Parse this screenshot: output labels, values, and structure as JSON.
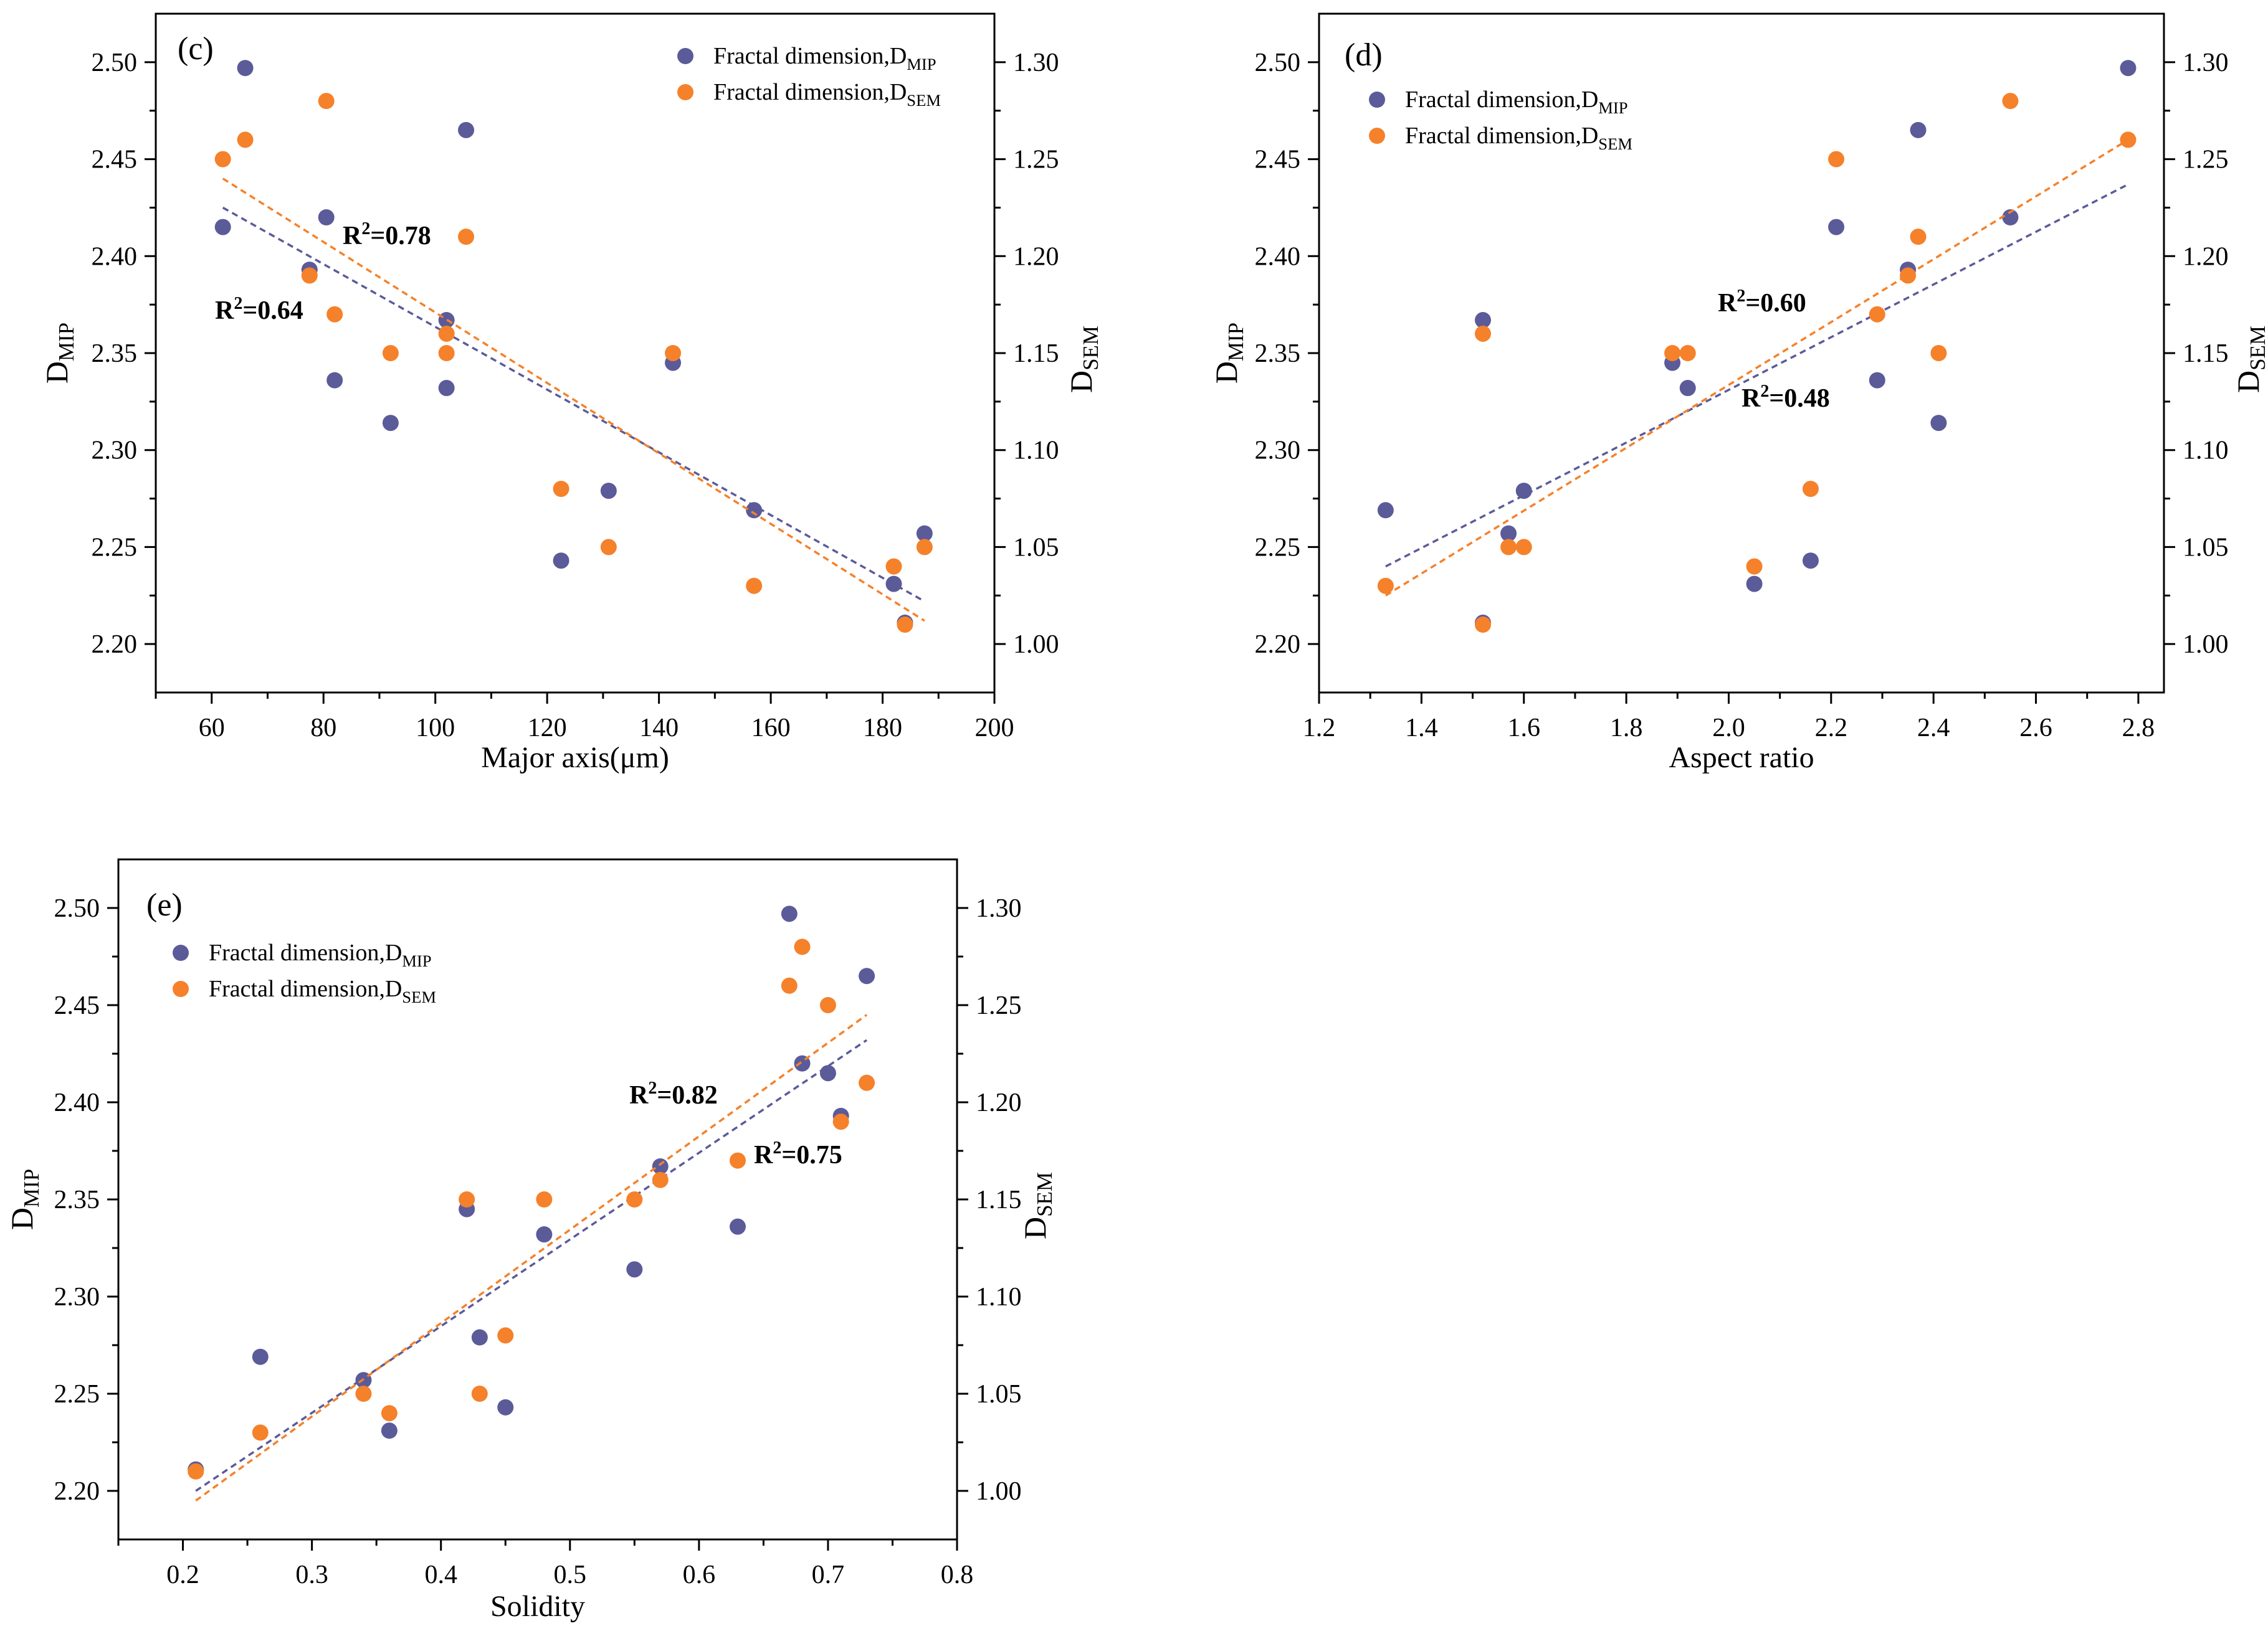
{
  "colors": {
    "mip": "#5b5b99",
    "sem": "#f5812a",
    "axis": "#000000"
  },
  "chart_data": [
    {
      "type": "scatter",
      "panel_label": "(c)",
      "xlabel": "Major axis(μm)",
      "ylabel_main": "D",
      "ylabel_sub": "MIP",
      "y2label_main": "D",
      "y2label_sub": "SEM",
      "xlim": [
        50,
        200
      ],
      "ylim": [
        2.175,
        2.525
      ],
      "y2lim": [
        0.975,
        1.325
      ],
      "xticks": [
        "60",
        "80",
        "100",
        "120",
        "140",
        "160",
        "180",
        "200"
      ],
      "yticks": [
        "2.20",
        "2.25",
        "2.30",
        "2.35",
        "2.40",
        "2.45",
        "2.50"
      ],
      "y2ticks": [
        "1.00",
        "1.05",
        "1.10",
        "1.15",
        "1.20",
        "1.25",
        "1.30"
      ],
      "legend_position": "top-right",
      "series": [
        {
          "name_main": "Fractal dimension,D",
          "name_sub": "MIP",
          "axis": "left",
          "x": [
            62,
            66,
            77.5,
            80.5,
            82,
            92,
            102,
            102,
            105.5,
            122.5,
            131,
            142.5,
            157,
            182,
            184,
            187.5
          ],
          "y": [
            2.415,
            2.497,
            2.393,
            2.42,
            2.336,
            2.314,
            2.367,
            2.332,
            2.465,
            2.243,
            2.279,
            2.345,
            2.269,
            2.231,
            2.211,
            2.257
          ],
          "fit": {
            "x": [
              62,
              187.5
            ],
            "y": [
              2.425,
              2.222
            ]
          },
          "r2_base": "R",
          "r2_sup": "2",
          "r2_rest": "=0.64"
        },
        {
          "name_main": "Fractal dimension,D",
          "name_sub": "SEM",
          "axis": "right",
          "x": [
            62,
            66,
            77.5,
            80.5,
            82,
            92,
            102,
            102,
            105.5,
            122.5,
            131,
            142.5,
            157,
            182,
            184,
            187.5
          ],
          "y": [
            1.25,
            1.26,
            1.19,
            1.28,
            1.17,
            1.15,
            1.16,
            1.15,
            1.21,
            1.08,
            1.05,
            1.15,
            1.03,
            1.04,
            1.01,
            1.05
          ],
          "fit": {
            "x": [
              62,
              187.5
            ],
            "y": [
              1.24,
              1.012
            ]
          },
          "r2_base": "R",
          "r2_sup": "2",
          "r2_rest": "=0.78"
        }
      ]
    },
    {
      "type": "scatter",
      "panel_label": "(d)",
      "xlabel": "Aspect ratio",
      "ylabel_main": "D",
      "ylabel_sub": "MIP",
      "y2label_main": "D",
      "y2label_sub": "SEM",
      "xlim": [
        1.2,
        2.85
      ],
      "ylim": [
        2.175,
        2.525
      ],
      "y2lim": [
        0.975,
        1.325
      ],
      "xticks": [
        "1.2",
        "1.4",
        "1.6",
        "1.8",
        "2.0",
        "2.2",
        "2.4",
        "2.6",
        "2.8"
      ],
      "yticks": [
        "2.20",
        "2.25",
        "2.30",
        "2.35",
        "2.40",
        "2.45",
        "2.50"
      ],
      "y2ticks": [
        "1.00",
        "1.05",
        "1.10",
        "1.15",
        "1.20",
        "1.25",
        "1.30"
      ],
      "legend_position": "top-left",
      "series": [
        {
          "name_main": "Fractal dimension,D",
          "name_sub": "MIP",
          "axis": "left",
          "x": [
            1.33,
            1.52,
            1.52,
            1.57,
            1.6,
            1.89,
            1.92,
            2.05,
            2.16,
            2.21,
            2.29,
            2.35,
            2.37,
            2.41,
            2.55,
            2.78
          ],
          "y": [
            2.269,
            2.367,
            2.211,
            2.257,
            2.279,
            2.345,
            2.332,
            2.231,
            2.243,
            2.415,
            2.336,
            2.393,
            2.465,
            2.314,
            2.42,
            2.497
          ],
          "fit": {
            "x": [
              1.33,
              2.78
            ],
            "y": [
              2.24,
              2.437
            ]
          },
          "r2_base": "R",
          "r2_sup": "2",
          "r2_rest": "=0.48"
        },
        {
          "name_main": "Fractal dimension,D",
          "name_sub": "SEM",
          "axis": "right",
          "x": [
            1.33,
            1.52,
            1.52,
            1.57,
            1.6,
            1.89,
            1.92,
            2.05,
            2.16,
            2.21,
            2.29,
            2.35,
            2.37,
            2.41,
            2.55,
            2.78
          ],
          "y": [
            1.03,
            1.16,
            1.01,
            1.05,
            1.05,
            1.15,
            1.15,
            1.04,
            1.08,
            1.25,
            1.17,
            1.19,
            1.21,
            1.15,
            1.28,
            1.26
          ],
          "fit": {
            "x": [
              1.33,
              2.78
            ],
            "y": [
              1.025,
              1.26
            ]
          },
          "r2_base": "R",
          "r2_sup": "2",
          "r2_rest": "=0.60"
        }
      ]
    },
    {
      "type": "scatter",
      "panel_label": "(e)",
      "xlabel": "Solidity",
      "ylabel_main": "D",
      "ylabel_sub": "MIP",
      "y2label_main": "D",
      "y2label_sub": "SEM",
      "xlim": [
        0.15,
        0.8
      ],
      "ylim": [
        2.175,
        2.525
      ],
      "y2lim": [
        0.975,
        1.325
      ],
      "xticks": [
        "0.2",
        "0.3",
        "0.4",
        "0.5",
        "0.6",
        "0.7",
        "0.8"
      ],
      "yticks": [
        "2.20",
        "2.25",
        "2.30",
        "2.35",
        "2.40",
        "2.45",
        "2.50"
      ],
      "y2ticks": [
        "1.00",
        "1.05",
        "1.10",
        "1.15",
        "1.20",
        "1.25",
        "1.30"
      ],
      "legend_position": "top-left",
      "series": [
        {
          "name_main": "Fractal dimension,D",
          "name_sub": "MIP",
          "axis": "left",
          "x": [
            0.21,
            0.26,
            0.34,
            0.36,
            0.42,
            0.43,
            0.45,
            0.48,
            0.55,
            0.57,
            0.63,
            0.67,
            0.68,
            0.7,
            0.71,
            0.73
          ],
          "y": [
            2.211,
            2.269,
            2.257,
            2.231,
            2.345,
            2.279,
            2.243,
            2.332,
            2.314,
            2.367,
            2.336,
            2.497,
            2.42,
            2.415,
            2.393,
            2.465
          ],
          "fit": {
            "x": [
              0.21,
              0.73
            ],
            "y": [
              2.2,
              2.432
            ]
          },
          "r2_base": "R",
          "r2_sup": "2",
          "r2_rest": "=0.75"
        },
        {
          "name_main": "Fractal dimension,D",
          "name_sub": "SEM",
          "axis": "right",
          "x": [
            0.21,
            0.26,
            0.34,
            0.36,
            0.42,
            0.43,
            0.45,
            0.48,
            0.55,
            0.57,
            0.63,
            0.67,
            0.68,
            0.7,
            0.71,
            0.73
          ],
          "y": [
            1.01,
            1.03,
            1.05,
            1.04,
            1.15,
            1.05,
            1.08,
            1.15,
            1.15,
            1.16,
            1.17,
            1.26,
            1.28,
            1.25,
            1.19,
            1.21
          ],
          "fit": {
            "x": [
              0.21,
              0.73
            ],
            "y": [
              0.995,
              1.245
            ]
          },
          "r2_base": "R",
          "r2_sup": "2",
          "r2_rest": "=0.82"
        }
      ]
    }
  ]
}
